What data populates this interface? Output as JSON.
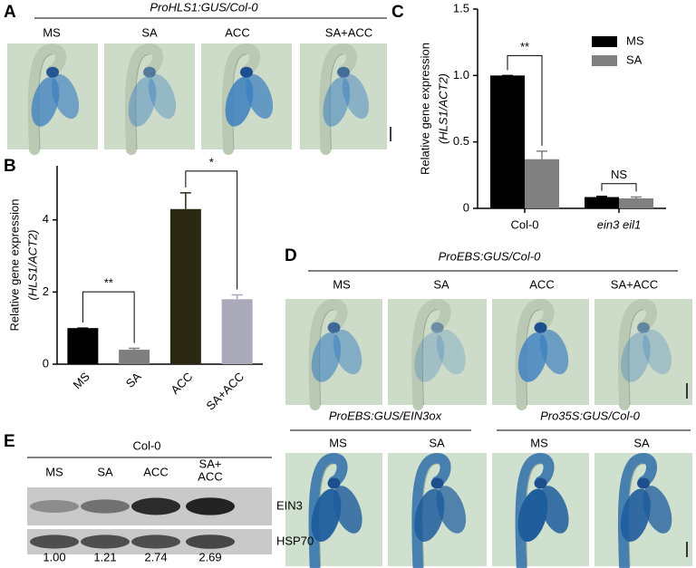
{
  "panel_a": {
    "letter": "A",
    "title": "ProHLS1:GUS/Col-0",
    "labels": [
      "MS",
      "SA",
      "ACC",
      "SA+ACC"
    ]
  },
  "chart_data": [
    {
      "letter": "B",
      "type": "bar",
      "y_label": "Relative gene expression",
      "y_label_sub": "(HLS1/ACT2)",
      "categories": [
        "MS",
        "SA",
        "ACC",
        "SA+ACC"
      ],
      "values": [
        1.0,
        0.4,
        4.3,
        1.8
      ],
      "errors": [
        0,
        0.04,
        0.45,
        0.12
      ],
      "colors": [
        "#000000",
        "#7f7f7f",
        "#2b2812",
        "#a9a9b9"
      ],
      "ylim": [
        0,
        5.5
      ],
      "yticks": [
        0,
        2,
        4
      ],
      "significance": [
        "**",
        "*"
      ]
    },
    {
      "letter": "C",
      "type": "grouped_bar",
      "y_label": "Relative gene expression",
      "y_label_sub": "(HLS1/ACT2)",
      "categories": [
        "Col-0",
        "ein3 eil1"
      ],
      "series": [
        {
          "name": "MS",
          "color": "#000000",
          "values": [
            1.0,
            0.085
          ],
          "errors": [
            0,
            0.005
          ]
        },
        {
          "name": "SA",
          "color": "#808080",
          "values": [
            0.37,
            0.075
          ],
          "errors": [
            0.06,
            0.01
          ]
        }
      ],
      "ylim": [
        0,
        1.5
      ],
      "yticks": [
        0,
        0.5,
        {
          "value": 1,
          "label": "1.0"
        },
        {
          "value": 1.5,
          "label": "1.5"
        }
      ],
      "legend": "upper right",
      "significance": [
        "**",
        "NS"
      ]
    }
  ],
  "panel_d": {
    "letter": "D",
    "title": "ProEBS:GUS/Col-0",
    "labels": [
      "MS",
      "SA",
      "ACC",
      "SA+ACC"
    ],
    "groups": [
      {
        "title": "ProEBS:GUS/EIN3ox",
        "labels": [
          "MS",
          "SA"
        ]
      },
      {
        "title": "Pro35S:GUS/Col-0",
        "labels": [
          "MS",
          "SA"
        ]
      }
    ]
  },
  "panel_e": {
    "letter": "E",
    "title": "Col-0",
    "lanes": [
      [
        "MS"
      ],
      [
        "SA"
      ],
      [
        "ACC"
      ],
      [
        "SA+",
        "ACC"
      ]
    ],
    "bands": [
      "EIN3",
      "HSP70"
    ],
    "quantification": [
      "1.00",
      "1.21",
      "2.74",
      "2.69"
    ]
  }
}
